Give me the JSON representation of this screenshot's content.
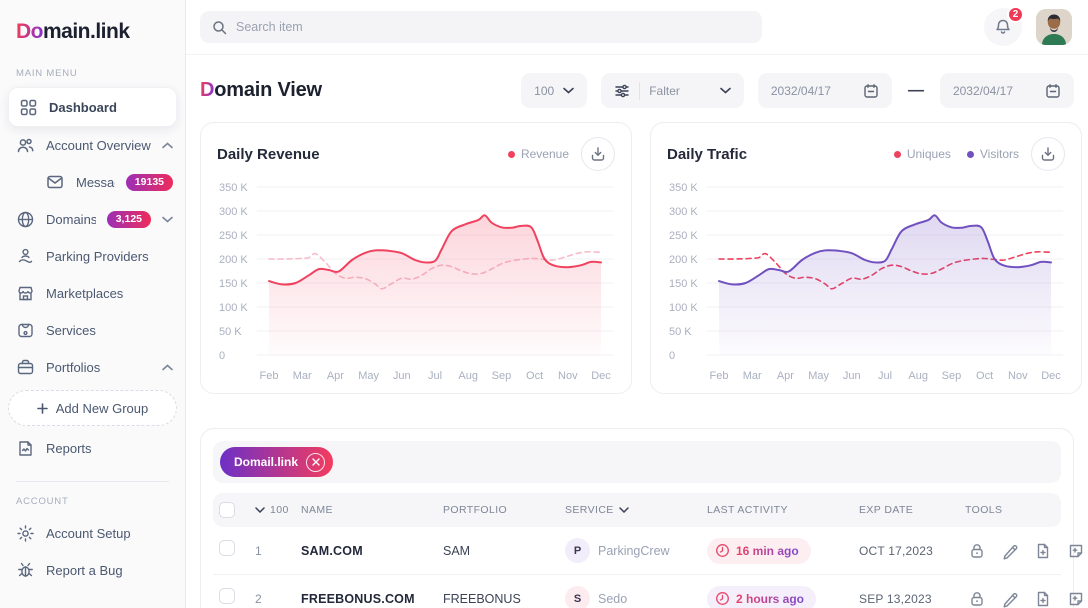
{
  "brand": {
    "logo_accent": "Do",
    "logo_rest": "main.link"
  },
  "topbar": {
    "search_placeholder": "Search item",
    "notification_count": "2"
  },
  "sidebar": {
    "main_menu_label": "MAIN MENU",
    "account_label": "ACCOUNT",
    "dashboard": "Dashboard",
    "account_overview": "Account Overview",
    "messages": "Messages",
    "messages_badge": "19135",
    "domains": "Domains",
    "domains_badge": "3,125",
    "parking_providers": "Parking Providers",
    "marketplaces": "Marketplaces",
    "services": "Services",
    "portfolios": "Portfolios",
    "add_new_group": "Add New Group",
    "reports": "Reports",
    "account_setup": "Account Setup",
    "report_a_bug": "Report a Bug"
  },
  "page": {
    "title_accent": "D",
    "title_rest": "omain View"
  },
  "filters": {
    "page_size": "100",
    "filter_label": "Falter",
    "date_from": "2032/04/17",
    "date_separator": "—",
    "date_to": "2032/04/17"
  },
  "chart_data": [
    {
      "type": "line",
      "title": "Daily Revenue",
      "x_labels": [
        "Feb",
        "Mar",
        "Apr",
        "May",
        "Jun",
        "Jul",
        "Aug",
        "Sep",
        "Oct",
        "Nov",
        "Dec"
      ],
      "ylim": [
        0,
        350
      ],
      "y_unit": "K",
      "y_ticks": [
        0,
        50,
        100,
        150,
        200,
        250,
        300,
        350
      ],
      "y_tick_labels": [
        "0",
        "50 K",
        "100 K",
        "150 K",
        "200 K",
        "250 K",
        "300 K",
        "350 K"
      ],
      "grid": "horizontal",
      "legend_position": "top-right",
      "legend": [
        {
          "label": "Revenue",
          "color": "#f0425f"
        }
      ],
      "series": [
        {
          "name": "Revenue (unlabeled dashed comparison)",
          "style": "dashed",
          "color": "#f7bcc9",
          "fill": false,
          "monthly_values_k": [
            200,
            203,
            168,
            155,
            161,
            186,
            171,
            196,
            200,
            208,
            214
          ],
          "points": [
            [
              0,
              200
            ],
            [
              0.5,
              200
            ],
            [
              0.9,
              201
            ],
            [
              1.2,
              203
            ],
            [
              1.4,
              211
            ],
            [
              1.7,
              193
            ],
            [
              2,
              170
            ],
            [
              2.3,
              160
            ],
            [
              2.6,
              162
            ],
            [
              2.9,
              159
            ],
            [
              3.2,
              148
            ],
            [
              3.4,
              138
            ],
            [
              3.7,
              149
            ],
            [
              4,
              160
            ],
            [
              4.3,
              158
            ],
            [
              4.6,
              166
            ],
            [
              4.9,
              180
            ],
            [
              5.2,
              187
            ],
            [
              5.5,
              184
            ],
            [
              5.8,
              175
            ],
            [
              6.1,
              169
            ],
            [
              6.4,
              170
            ],
            [
              6.7,
              179
            ],
            [
              7,
              190
            ],
            [
              7.3,
              196
            ],
            [
              7.7,
              200
            ],
            [
              8,
              201
            ],
            [
              8.3,
              199
            ],
            [
              8.6,
              198
            ],
            [
              9,
              206
            ],
            [
              9.3,
              212
            ],
            [
              9.6,
              215
            ],
            [
              10,
              214
            ]
          ]
        },
        {
          "name": "Revenue",
          "style": "solid",
          "color": "#f0425f",
          "fill": true,
          "monthly_values_k": [
            154,
            158,
            174,
            216,
            212,
            195,
            288,
            266,
            196,
            183,
            193
          ],
          "points": [
            [
              0,
              154
            ],
            [
              0.4,
              147
            ],
            [
              0.8,
              150
            ],
            [
              1.2,
              166
            ],
            [
              1.5,
              179
            ],
            [
              1.8,
              177
            ],
            [
              2.1,
              174
            ],
            [
              2.5,
              198
            ],
            [
              2.9,
              213
            ],
            [
              3.2,
              218
            ],
            [
              3.6,
              217
            ],
            [
              4,
              212
            ],
            [
              4.4,
              198
            ],
            [
              4.7,
              193
            ],
            [
              5,
              196
            ],
            [
              5.2,
              220
            ],
            [
              5.5,
              258
            ],
            [
              5.9,
              272
            ],
            [
              6.3,
              281
            ],
            [
              6.5,
              291
            ],
            [
              6.7,
              276
            ],
            [
              7,
              266
            ],
            [
              7.3,
              265
            ],
            [
              7.6,
              269
            ],
            [
              7.9,
              266
            ],
            [
              8.1,
              236
            ],
            [
              8.3,
              200
            ],
            [
              8.6,
              186
            ],
            [
              9,
              183
            ],
            [
              9.4,
              187
            ],
            [
              9.7,
              194
            ],
            [
              10,
              193
            ]
          ]
        }
      ]
    },
    {
      "type": "line",
      "title": "Daily Trafic",
      "x_labels": [
        "Feb",
        "Mar",
        "Apr",
        "May",
        "Jun",
        "Jul",
        "Aug",
        "Sep",
        "Oct",
        "Nov",
        "Dec"
      ],
      "ylim": [
        0,
        350
      ],
      "y_unit": "K",
      "y_ticks": [
        0,
        50,
        100,
        150,
        200,
        250,
        300,
        350
      ],
      "y_tick_labels": [
        "0",
        "50 K",
        "100 K",
        "150 K",
        "200 K",
        "250 K",
        "300 K",
        "350 K"
      ],
      "grid": "horizontal",
      "legend_position": "top-right",
      "legend": [
        {
          "label": "Uniques",
          "color": "#ee415d"
        },
        {
          "label": "Visitors",
          "color": "#7150c0"
        }
      ],
      "series": [
        {
          "name": "Uniques",
          "style": "dashed",
          "color": "#ee415d",
          "fill": false,
          "monthly_values_k": [
            200,
            203,
            168,
            155,
            161,
            186,
            171,
            196,
            200,
            208,
            214
          ],
          "points": [
            [
              0,
              200
            ],
            [
              0.5,
              200
            ],
            [
              0.9,
              201
            ],
            [
              1.2,
              203
            ],
            [
              1.4,
              211
            ],
            [
              1.7,
              193
            ],
            [
              2,
              170
            ],
            [
              2.3,
              160
            ],
            [
              2.6,
              162
            ],
            [
              2.9,
              159
            ],
            [
              3.2,
              148
            ],
            [
              3.4,
              138
            ],
            [
              3.7,
              149
            ],
            [
              4,
              160
            ],
            [
              4.3,
              158
            ],
            [
              4.6,
              166
            ],
            [
              4.9,
              180
            ],
            [
              5.2,
              187
            ],
            [
              5.5,
              184
            ],
            [
              5.8,
              175
            ],
            [
              6.1,
              169
            ],
            [
              6.4,
              170
            ],
            [
              6.7,
              179
            ],
            [
              7,
              190
            ],
            [
              7.3,
              196
            ],
            [
              7.7,
              200
            ],
            [
              8,
              201
            ],
            [
              8.3,
              199
            ],
            [
              8.6,
              198
            ],
            [
              9,
              206
            ],
            [
              9.3,
              212
            ],
            [
              9.6,
              215
            ],
            [
              10,
              214
            ]
          ]
        },
        {
          "name": "Visitors",
          "style": "solid",
          "color": "#7150c0",
          "fill": true,
          "monthly_values_k": [
            154,
            158,
            174,
            216,
            212,
            195,
            288,
            266,
            196,
            183,
            193
          ],
          "points": [
            [
              0,
              154
            ],
            [
              0.4,
              147
            ],
            [
              0.8,
              150
            ],
            [
              1.2,
              166
            ],
            [
              1.5,
              179
            ],
            [
              1.8,
              177
            ],
            [
              2.1,
              174
            ],
            [
              2.5,
              198
            ],
            [
              2.9,
              213
            ],
            [
              3.2,
              218
            ],
            [
              3.6,
              217
            ],
            [
              4,
              212
            ],
            [
              4.4,
              198
            ],
            [
              4.7,
              193
            ],
            [
              5,
              196
            ],
            [
              5.2,
              220
            ],
            [
              5.5,
              258
            ],
            [
              5.9,
              272
            ],
            [
              6.3,
              281
            ],
            [
              6.5,
              291
            ],
            [
              6.7,
              276
            ],
            [
              7,
              266
            ],
            [
              7.3,
              265
            ],
            [
              7.6,
              269
            ],
            [
              7.9,
              266
            ],
            [
              8.1,
              236
            ],
            [
              8.3,
              200
            ],
            [
              8.6,
              186
            ],
            [
              9,
              183
            ],
            [
              9.4,
              187
            ],
            [
              9.7,
              194
            ],
            [
              10,
              193
            ]
          ]
        }
      ]
    }
  ],
  "table": {
    "tag": "Domail.link",
    "header": {
      "select_count": "100",
      "name": "NAME",
      "portfolio": "PORTFOLIO",
      "service": "SERVICE",
      "last_activity": "LAST ACTIVITY",
      "exp_date": "EXP DATE",
      "tools": "TOOLS"
    },
    "rows": [
      {
        "index": "1",
        "name": "SAM.COM",
        "portfolio": "SAM",
        "service_initial": "P",
        "service": "ParkingCrew",
        "service_avatar_bg": "#f2edfa",
        "last_activity": "16 min ago",
        "activity_bg": "#fdeef2",
        "exp_date": "OCT 17,2023"
      },
      {
        "index": "2",
        "name": "FREEBONUS.COM",
        "portfolio": "FREEBONUS",
        "service_initial": "S",
        "service": "Sedo",
        "service_avatar_bg": "#fdecef",
        "last_activity": "2 hours ago",
        "activity_bg": "#f5effb",
        "exp_date": "SEP 13,2023"
      }
    ],
    "row_tools": [
      "lock",
      "pencil",
      "file-plus",
      "note-plus"
    ]
  },
  "colors": {
    "accent_red": "#f0425f",
    "accent_purple": "#7150c0",
    "badge_gradient": [
      "#9b2fb6",
      "#ee2c5b"
    ],
    "chip_gradient": [
      "#6d30c7",
      "#f33c5e"
    ],
    "notification_badge": "#ef3a55"
  }
}
